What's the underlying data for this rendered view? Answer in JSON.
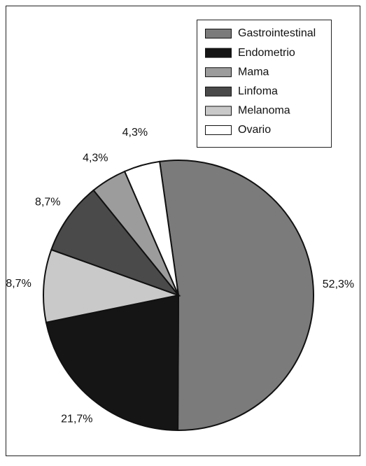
{
  "chart_data": {
    "type": "pie",
    "categories": [
      "Gastrointestinal",
      "Endometrio",
      "Mama",
      "Linfoma",
      "Melanoma",
      "Ovario"
    ],
    "values": [
      52.3,
      21.7,
      4.3,
      8.7,
      8.7,
      4.3
    ],
    "value_labels": [
      "52,3%",
      "21,7%",
      "4,3%",
      "8,7%",
      "8,7%",
      "4,3%"
    ],
    "colors": [
      "#7b7b7b",
      "#151515",
      "#9c9c9c",
      "#4a4a4a",
      "#c9c9c9",
      "#ffffff"
    ],
    "legend": "top-right"
  }
}
